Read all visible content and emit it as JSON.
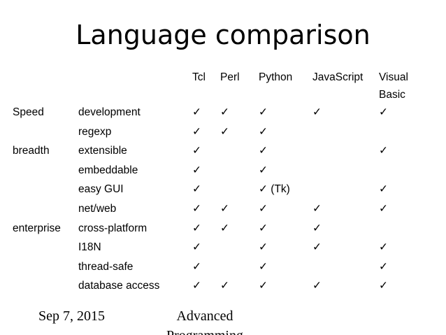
{
  "title": "Language comparison",
  "table": {
    "header": [
      null,
      null,
      "Tcl",
      "Perl",
      "Python",
      "JavaScript",
      "Visual Basic"
    ],
    "rows": [
      [
        "Speed",
        "development",
        "✓",
        "✓",
        "✓",
        "✓",
        "✓"
      ],
      [
        null,
        "regexp",
        "✓",
        "✓",
        "✓",
        null,
        null
      ],
      [
        "breadth",
        "extensible",
        "✓",
        null,
        "✓",
        null,
        "✓"
      ],
      [
        null,
        "embeddable",
        "✓",
        null,
        "✓",
        null,
        null
      ],
      [
        null,
        "easy GUI",
        "✓",
        null,
        "✓ (Tk)",
        null,
        "✓"
      ],
      [
        null,
        "net/web",
        "✓",
        "✓",
        "✓",
        "✓",
        "✓"
      ],
      [
        "enterprise",
        "cross-platform",
        "✓",
        "✓",
        "✓",
        "✓",
        null
      ],
      [
        null,
        "I18N",
        "✓",
        null,
        "✓",
        "✓",
        "✓"
      ],
      [
        null,
        "thread-safe",
        "✓",
        null,
        "✓",
        null,
        "✓"
      ],
      [
        null,
        "database access",
        "✓",
        "✓",
        "✓",
        "✓",
        "✓"
      ]
    ]
  },
  "footer": {
    "date": "Sep 7, 2015",
    "course": "Advanced Programming"
  }
}
